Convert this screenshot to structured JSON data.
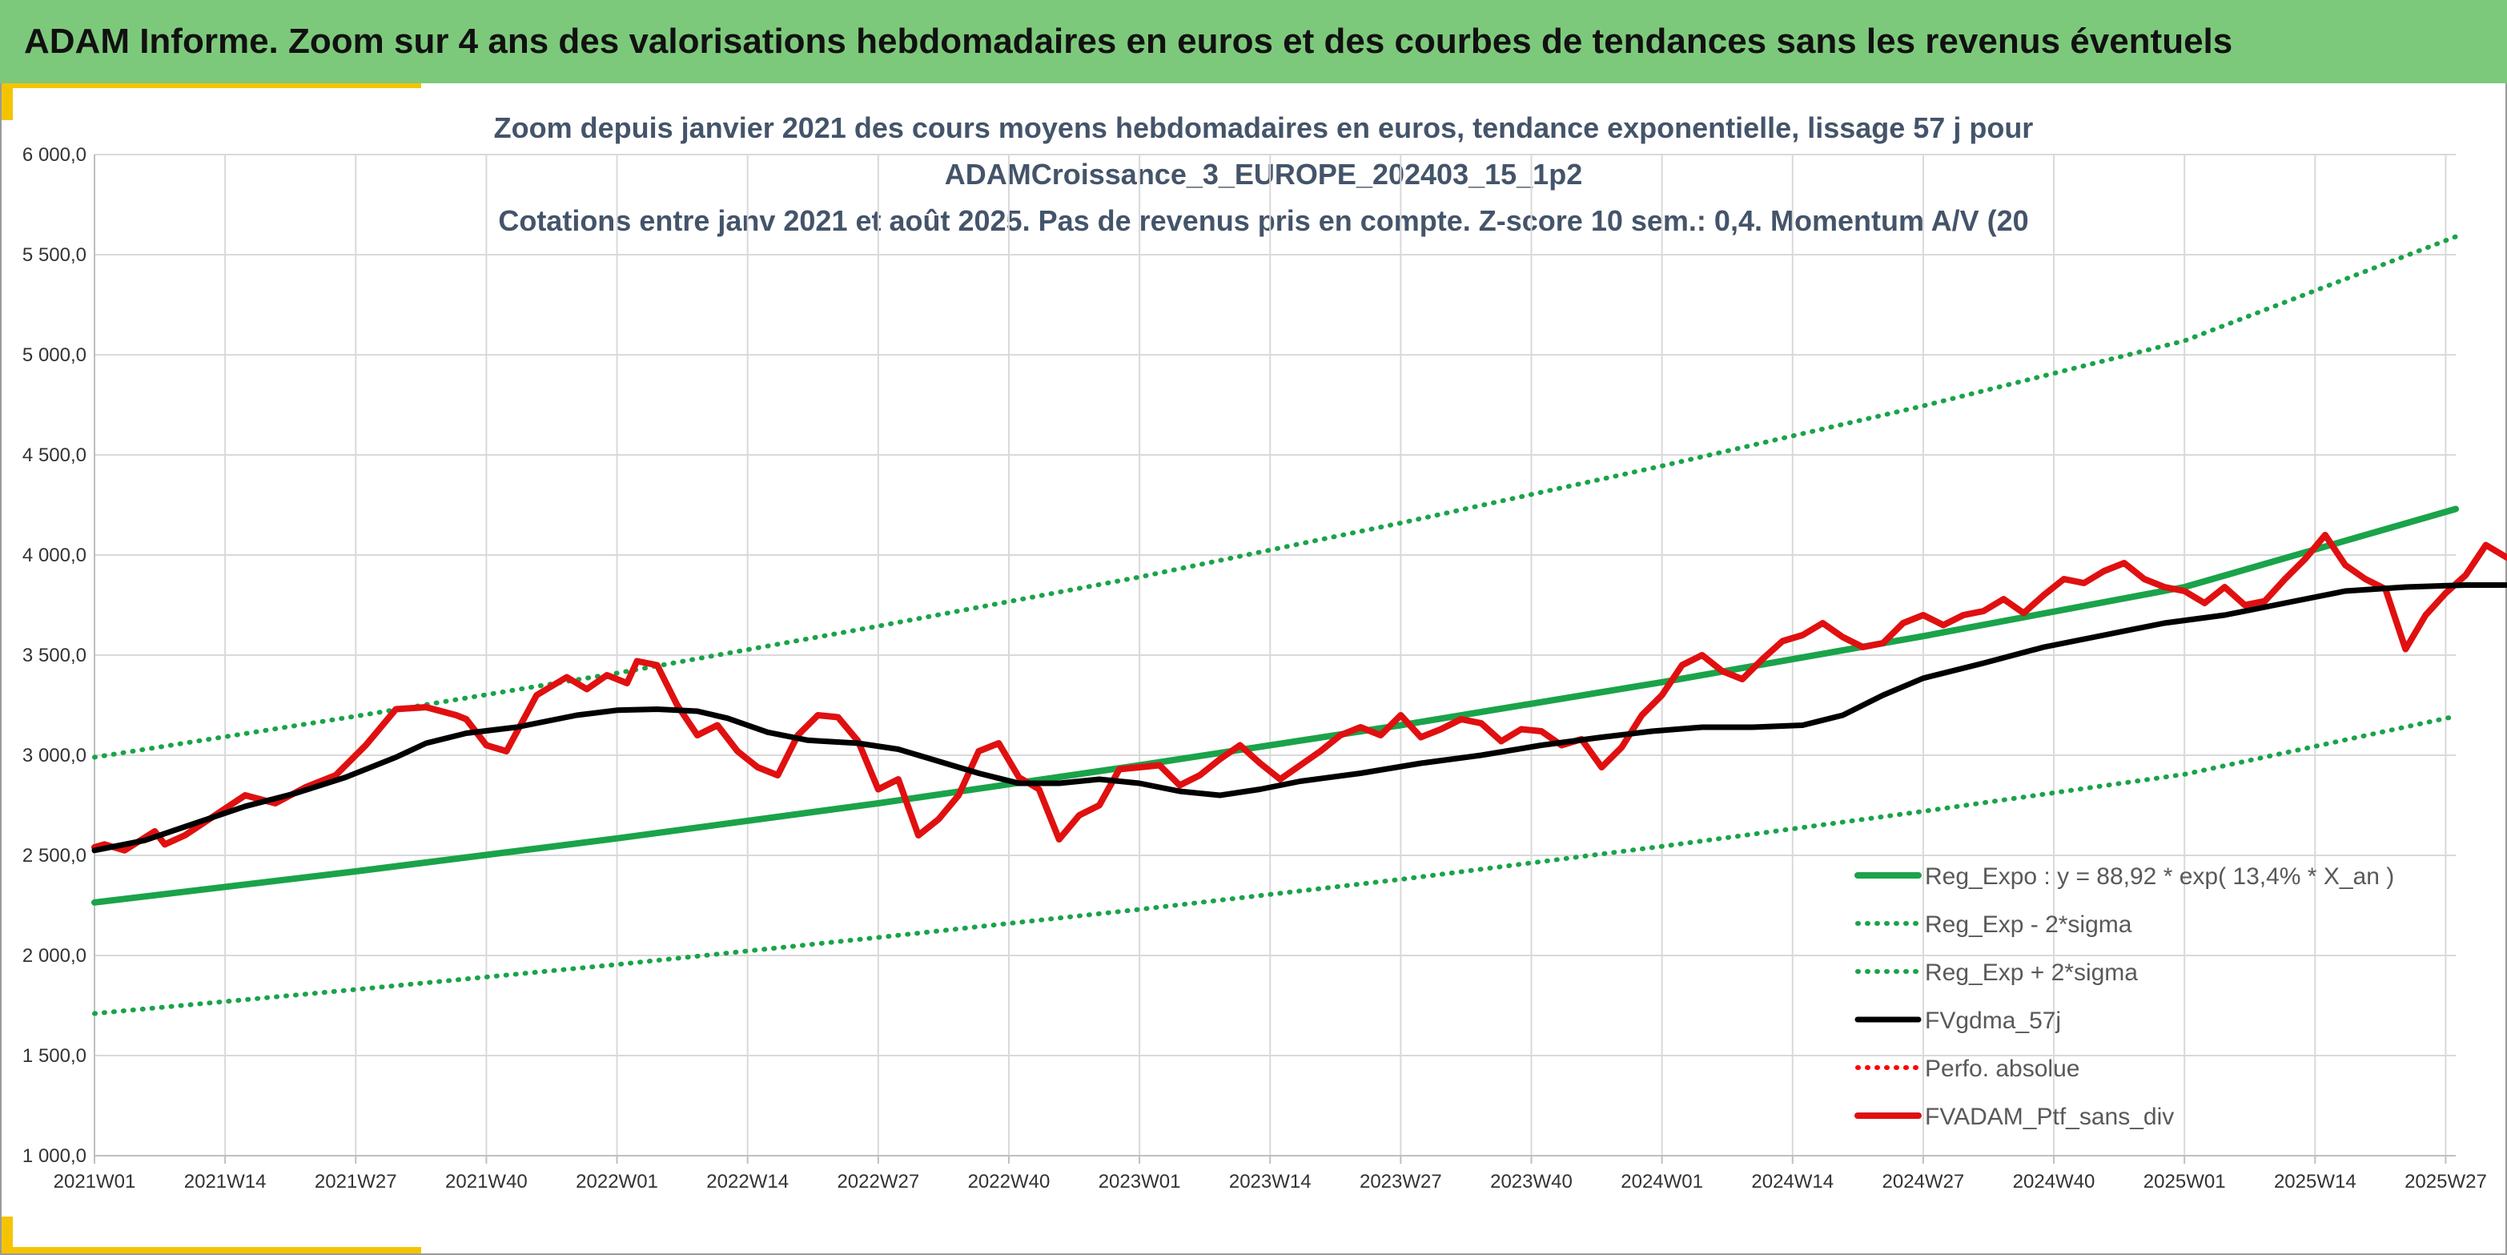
{
  "header": {
    "title": "ADAM Informe. Zoom sur 4 ans des valorisations hebdomadaires en euros et des courbes de tendances sans les revenus éventuels",
    "background": "#7dc97b",
    "accent": "#f5c400"
  },
  "chart_data": {
    "type": "line",
    "title_lines": [
      "Zoom depuis janvier 2021 des cours moyens hebdomadaires en euros, tendance exponentielle, lissage 57 j pour",
      "ADAMCroissance_3_EUROPE_202403_15_1p2",
      "Cotations entre janv 2021 et août 2025. Pas de revenus pris en compte. Z-score 10 sem.: 0,4. Momentum A/V (20"
    ],
    "x_tick_labels": [
      "2021W01",
      "2021W14",
      "2021W27",
      "2021W40",
      "2022W01",
      "2022W14",
      "2022W27",
      "2022W40",
      "2023W01",
      "2023W14",
      "2023W27",
      "2023W40",
      "2024W01",
      "2024W14",
      "2024W27",
      "2024W40",
      "2025W01",
      "2025W14",
      "2025W27"
    ],
    "x_range_weeks": [
      0,
      235
    ],
    "y_tick_labels": [
      "1 000,0",
      "1 500,0",
      "2 000,0",
      "2 500,0",
      "3 000,0",
      "3 500,0",
      "4 000,0",
      "4 500,0",
      "5 000,0",
      "5 500,0",
      "6 000,0"
    ],
    "ylim": [
      1000,
      6000
    ],
    "grid": true,
    "legend_position": "bottom-right",
    "series": [
      {
        "name": "Reg_Expo : y = 88,92 * exp( 13,4% *  X_an )",
        "color": "#1aa34a",
        "style": "solid",
        "points": [
          [
            0,
            2265
          ],
          [
            26,
            2420
          ],
          [
            52,
            2585
          ],
          [
            78,
            2760
          ],
          [
            104,
            2950
          ],
          [
            130,
            3150
          ],
          [
            156,
            3365
          ],
          [
            182,
            3595
          ],
          [
            208,
            3840
          ],
          [
            235,
            4230
          ]
        ]
      },
      {
        "name": "Reg_Exp - 2*sigma",
        "color": "#1aa34a",
        "style": "dotted",
        "points": [
          [
            0,
            1710
          ],
          [
            26,
            1830
          ],
          [
            52,
            1955
          ],
          [
            78,
            2090
          ],
          [
            104,
            2230
          ],
          [
            130,
            2380
          ],
          [
            156,
            2545
          ],
          [
            182,
            2720
          ],
          [
            208,
            2905
          ],
          [
            235,
            3195
          ]
        ]
      },
      {
        "name": "Reg_Exp + 2*sigma",
        "color": "#1aa34a",
        "style": "dotted",
        "points": [
          [
            0,
            2990
          ],
          [
            26,
            3195
          ],
          [
            52,
            3410
          ],
          [
            78,
            3645
          ],
          [
            104,
            3890
          ],
          [
            130,
            4160
          ],
          [
            156,
            4445
          ],
          [
            182,
            4745
          ],
          [
            208,
            5070
          ],
          [
            235,
            5590
          ]
        ]
      },
      {
        "name": "FVgdma_57j",
        "color": "#000000",
        "style": "solid",
        "points": [
          [
            0,
            2525
          ],
          [
            5,
            2575
          ],
          [
            10,
            2660
          ],
          [
            15,
            2745
          ],
          [
            20,
            2810
          ],
          [
            25,
            2890
          ],
          [
            30,
            2990
          ],
          [
            33,
            3060
          ],
          [
            37,
            3110
          ],
          [
            42,
            3140
          ],
          [
            48,
            3200
          ],
          [
            52,
            3225
          ],
          [
            56,
            3230
          ],
          [
            60,
            3220
          ],
          [
            63,
            3185
          ],
          [
            67,
            3115
          ],
          [
            71,
            3075
          ],
          [
            76,
            3060
          ],
          [
            80,
            3030
          ],
          [
            84,
            2970
          ],
          [
            88,
            2910
          ],
          [
            92,
            2860
          ],
          [
            96,
            2860
          ],
          [
            100,
            2880
          ],
          [
            104,
            2860
          ],
          [
            108,
            2820
          ],
          [
            112,
            2800
          ],
          [
            116,
            2830
          ],
          [
            120,
            2870
          ],
          [
            126,
            2910
          ],
          [
            132,
            2960
          ],
          [
            138,
            3000
          ],
          [
            144,
            3050
          ],
          [
            150,
            3090
          ],
          [
            155,
            3120
          ],
          [
            160,
            3140
          ],
          [
            165,
            3140
          ],
          [
            170,
            3150
          ],
          [
            174,
            3200
          ],
          [
            178,
            3300
          ],
          [
            182,
            3385
          ],
          [
            188,
            3460
          ],
          [
            194,
            3540
          ],
          [
            200,
            3600
          ],
          [
            206,
            3660
          ],
          [
            212,
            3700
          ],
          [
            218,
            3760
          ],
          [
            224,
            3820
          ],
          [
            230,
            3840
          ],
          [
            236,
            3850
          ],
          [
            240,
            3850
          ]
        ]
      },
      {
        "name": "Perfo. absolue",
        "color": "#ff0000",
        "style": "dotted",
        "points": []
      },
      {
        "name": "FVADAM_Ptf_sans_div",
        "color": "#e01010",
        "style": "solid",
        "points": [
          [
            0,
            2540
          ],
          [
            1,
            2555
          ],
          [
            3,
            2525
          ],
          [
            6,
            2620
          ],
          [
            7,
            2555
          ],
          [
            9,
            2600
          ],
          [
            12,
            2700
          ],
          [
            15,
            2800
          ],
          [
            18,
            2760
          ],
          [
            21,
            2840
          ],
          [
            24,
            2900
          ],
          [
            27,
            3050
          ],
          [
            30,
            3230
          ],
          [
            33,
            3240
          ],
          [
            36,
            3200
          ],
          [
            37,
            3180
          ],
          [
            39,
            3050
          ],
          [
            41,
            3020
          ],
          [
            44,
            3300
          ],
          [
            47,
            3390
          ],
          [
            49,
            3330
          ],
          [
            51,
            3400
          ],
          [
            53,
            3360
          ],
          [
            54,
            3470
          ],
          [
            56,
            3450
          ],
          [
            58,
            3250
          ],
          [
            60,
            3100
          ],
          [
            62,
            3150
          ],
          [
            64,
            3020
          ],
          [
            66,
            2940
          ],
          [
            68,
            2900
          ],
          [
            70,
            3100
          ],
          [
            72,
            3200
          ],
          [
            74,
            3190
          ],
          [
            76,
            3070
          ],
          [
            78,
            2830
          ],
          [
            80,
            2880
          ],
          [
            82,
            2600
          ],
          [
            84,
            2680
          ],
          [
            86,
            2800
          ],
          [
            88,
            3020
          ],
          [
            90,
            3060
          ],
          [
            92,
            2890
          ],
          [
            94,
            2830
          ],
          [
            96,
            2580
          ],
          [
            98,
            2700
          ],
          [
            100,
            2750
          ],
          [
            102,
            2930
          ],
          [
            104,
            2940
          ],
          [
            106,
            2950
          ],
          [
            108,
            2850
          ],
          [
            110,
            2900
          ],
          [
            112,
            2980
          ],
          [
            114,
            3050
          ],
          [
            116,
            2960
          ],
          [
            118,
            2880
          ],
          [
            120,
            2950
          ],
          [
            122,
            3020
          ],
          [
            124,
            3100
          ],
          [
            126,
            3140
          ],
          [
            128,
            3100
          ],
          [
            130,
            3200
          ],
          [
            132,
            3090
          ],
          [
            134,
            3130
          ],
          [
            136,
            3180
          ],
          [
            138,
            3160
          ],
          [
            140,
            3070
          ],
          [
            142,
            3130
          ],
          [
            144,
            3120
          ],
          [
            146,
            3050
          ],
          [
            148,
            3080
          ],
          [
            150,
            2940
          ],
          [
            152,
            3040
          ],
          [
            154,
            3200
          ],
          [
            156,
            3300
          ],
          [
            158,
            3450
          ],
          [
            160,
            3500
          ],
          [
            162,
            3420
          ],
          [
            164,
            3380
          ],
          [
            166,
            3480
          ],
          [
            168,
            3570
          ],
          [
            170,
            3600
          ],
          [
            172,
            3660
          ],
          [
            174,
            3590
          ],
          [
            176,
            3540
          ],
          [
            178,
            3560
          ],
          [
            180,
            3660
          ],
          [
            182,
            3700
          ],
          [
            184,
            3650
          ],
          [
            186,
            3700
          ],
          [
            188,
            3720
          ],
          [
            190,
            3780
          ],
          [
            192,
            3710
          ],
          [
            194,
            3800
          ],
          [
            196,
            3880
          ],
          [
            198,
            3860
          ],
          [
            200,
            3920
          ],
          [
            202,
            3960
          ],
          [
            204,
            3880
          ],
          [
            206,
            3840
          ],
          [
            208,
            3820
          ],
          [
            210,
            3760
          ],
          [
            212,
            3840
          ],
          [
            214,
            3750
          ],
          [
            216,
            3770
          ],
          [
            218,
            3880
          ],
          [
            220,
            3980
          ],
          [
            222,
            4100
          ],
          [
            224,
            3950
          ],
          [
            226,
            3880
          ],
          [
            228,
            3830
          ],
          [
            230,
            3530
          ],
          [
            232,
            3700
          ],
          [
            234,
            3810
          ],
          [
            236,
            3900
          ],
          [
            238,
            4050
          ],
          [
            240,
            3990
          ],
          [
            242,
            3950
          ]
        ]
      }
    ]
  }
}
